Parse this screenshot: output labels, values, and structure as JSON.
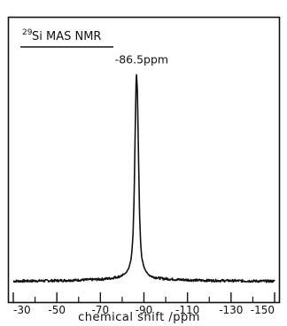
{
  "chart_data": {
    "type": "line",
    "title_superscript": "29",
    "title_main": "Si MAS NMR",
    "xlabel": "chemical shift /ppm",
    "ylabel": "",
    "x_reversed": true,
    "xlim": [
      -30,
      -150
    ],
    "ylim": [
      0,
      100
    ],
    "x_ticks": [
      -30,
      -50,
      -70,
      -90,
      -110,
      -130,
      -150
    ],
    "x_tick_labels": [
      "-30",
      "-50",
      "-70",
      "-90",
      "-110",
      "-130",
      "-150"
    ],
    "grid": false,
    "legend": false,
    "series": [
      {
        "x": [
          -30,
          -40,
          -50,
          -60,
          -70,
          -75,
          -79,
          -81,
          -82,
          -83,
          -84,
          -84.5,
          -85,
          -85.5,
          -86,
          -86.5,
          -87,
          -87.5,
          -88,
          -88.5,
          -89,
          -90,
          -91,
          -92,
          -94,
          -98,
          -105,
          -115,
          -125,
          -135,
          -145,
          -150
        ],
        "y": [
          1.2,
          1.3,
          1.4,
          1.6,
          1.9,
          2.3,
          3.0,
          3.8,
          4.6,
          6.0,
          9.0,
          12.5,
          19.0,
          33.0,
          58.0,
          80.0,
          72.0,
          48.0,
          26.0,
          15.0,
          10.0,
          6.5,
          4.8,
          3.7,
          2.8,
          2.2,
          1.8,
          1.5,
          1.4,
          1.3,
          1.2,
          1.2
        ]
      }
    ],
    "annotations": [
      {
        "text": "-86.5ppm",
        "x": -86.5,
        "y": 80
      }
    ]
  }
}
